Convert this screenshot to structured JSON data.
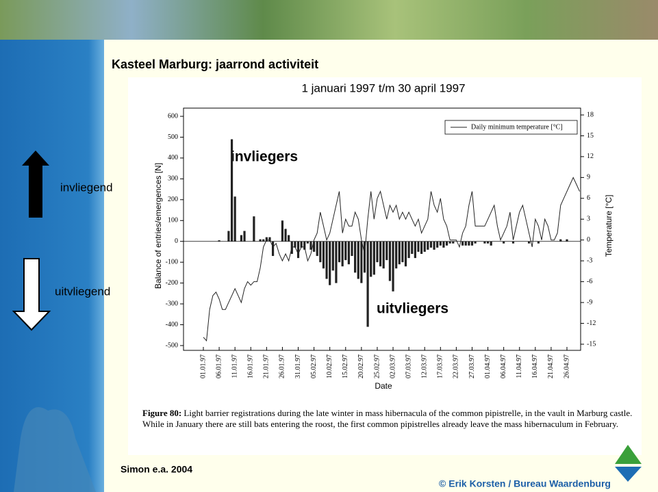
{
  "slide_title": "Kasteel Marburg: jaarrond activiteit",
  "side_labels": [
    "invliegend",
    "uitvliegend"
  ],
  "caption": {
    "label": "Figure 80:",
    "text": "Light barrier registrations during the late winter in mass hibernacula of the common pipistrelle, in the vault in Marburg castle. While in January there are still bats entering the roost, the first common pipistrelles already leave the mass hibernaculum in February."
  },
  "source": "Simon e.a. 2004",
  "copyright": "© Erik Korsten / Bureau Waardenburg",
  "chart_data": {
    "type": "bar",
    "title": "1 januari 1997 t/m 30 april 1997",
    "x_label": "Date",
    "y_label": "Balance of entries/emergences [N]",
    "y2_label": "Temperature [°C]",
    "annotations": [
      "invliegers",
      "uitvliegers"
    ],
    "legend": "top-right",
    "categories": [
      "01.01.97",
      null,
      null,
      null,
      null,
      "06.01.97",
      null,
      null,
      null,
      null,
      "11.01.97",
      null,
      null,
      null,
      null,
      "16.01.97",
      null,
      null,
      null,
      null,
      "21.01.97",
      null,
      null,
      null,
      null,
      "26.01.97",
      null,
      null,
      null,
      null,
      "31.01.97",
      null,
      null,
      null,
      null,
      "05.02.97",
      null,
      null,
      null,
      null,
      "10.02.97",
      null,
      null,
      null,
      null,
      "15.02.97",
      null,
      null,
      null,
      null,
      "20.02.97",
      null,
      null,
      null,
      null,
      "25.02.97",
      null,
      null,
      null,
      null,
      "02.03.97",
      null,
      null,
      null,
      null,
      "07.03.97",
      null,
      null,
      null,
      null,
      "12.03.97",
      null,
      null,
      null,
      null,
      "17.03.97",
      null,
      null,
      null,
      null,
      "22.03.97",
      null,
      null,
      null,
      null,
      "27.03.97",
      null,
      null,
      null,
      null,
      "01.04.97",
      null,
      null,
      null,
      null,
      "06.04.97",
      null,
      null,
      null,
      null,
      "11.04.97",
      null,
      null,
      null,
      null,
      "16.04.97",
      null,
      null,
      null,
      null,
      "21.04.97",
      null,
      null,
      null,
      null,
      "26.04.97",
      null,
      null,
      null,
      null
    ],
    "series": [
      {
        "color": "#222222",
        "values": [
          0,
          0,
          0,
          0,
          0,
          5,
          0,
          0,
          50,
          490,
          215,
          0,
          30,
          50,
          0,
          0,
          120,
          0,
          10,
          10,
          20,
          20,
          -70,
          0,
          0,
          100,
          60,
          30,
          -60,
          -30,
          -80,
          -30,
          -40,
          -10,
          -40,
          -50,
          -70,
          -100,
          -130,
          -180,
          -210,
          -140,
          -200,
          -100,
          -120,
          -90,
          -110,
          -70,
          -150,
          -180,
          -200,
          -150,
          -410,
          -170,
          -160,
          -100,
          -120,
          -130,
          -90,
          -190,
          -240,
          -130,
          -110,
          -100,
          -120,
          -80,
          -60,
          -80,
          -50,
          -60,
          -50,
          -40,
          -30,
          -40,
          -30,
          -20,
          -30,
          -20,
          -10,
          -10,
          0,
          0,
          -20,
          -20,
          -20,
          -20,
          -10,
          0,
          0,
          -10,
          -10,
          -20,
          0,
          0,
          0,
          -10,
          0,
          0,
          -10,
          0,
          0,
          0,
          0,
          -10,
          0,
          0,
          -10,
          0,
          0,
          0,
          0,
          0,
          0,
          10,
          0,
          10,
          0,
          0,
          0,
          0
        ]
      },
      {
        "name": "Daily minimum temperature [°C]",
        "type": "line",
        "axis": "y2",
        "color": "#222222",
        "values": [
          -14,
          -14.5,
          -10,
          -8,
          -7.5,
          -8.5,
          -10,
          -10,
          -9,
          -8,
          -7,
          -8,
          -9,
          -7,
          -6,
          -6.5,
          -6,
          -6,
          -4,
          -1,
          0,
          0,
          -1,
          -0.5,
          -2,
          -3,
          -2,
          -3,
          -1,
          -1,
          -2,
          -1,
          -1,
          -3,
          -2,
          0,
          1,
          4,
          2,
          0,
          1,
          3,
          5,
          7,
          1,
          3,
          2,
          2,
          4,
          3,
          0,
          -2,
          3,
          7,
          3,
          6,
          7,
          5,
          3,
          5,
          4,
          5,
          3,
          4,
          3,
          4,
          3,
          2,
          3,
          1,
          2,
          3,
          7,
          5,
          4,
          6,
          3,
          2,
          0,
          0,
          0,
          -1,
          1,
          2,
          5,
          7,
          2,
          2,
          2,
          2,
          3,
          4,
          5,
          2,
          0,
          1,
          2,
          4,
          0,
          2,
          4,
          5,
          3,
          1,
          -1,
          3,
          2,
          0,
          3,
          2,
          0,
          0,
          1,
          5,
          6,
          7,
          8,
          9,
          8,
          7
        ]
      }
    ],
    "ylim": [
      -500,
      600
    ],
    "yticks": [
      600,
      500,
      400,
      300,
      200,
      100,
      0,
      -100,
      -200,
      -300,
      -400,
      -500
    ],
    "y2lim": [
      -15,
      18
    ],
    "y2ticks": [
      18,
      15,
      12,
      9,
      6,
      3,
      0,
      -3,
      -6,
      -9,
      -12,
      -15
    ]
  }
}
